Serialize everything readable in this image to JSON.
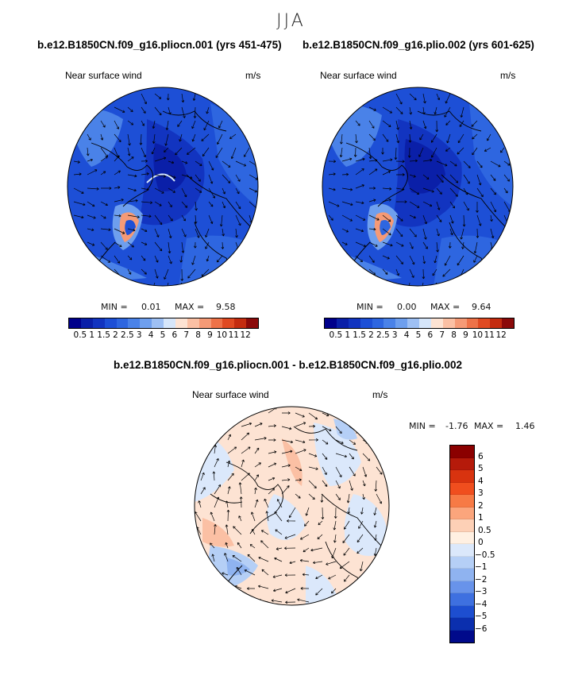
{
  "season": "JJA",
  "panels": [
    {
      "title": "b.e12.B1850CN.f09_g16.pliocn.001 (yrs 451-475)",
      "variable": "Near surface wind",
      "units": "m/s",
      "min_label": "MIN =",
      "min_value": "0.01",
      "max_label": "MAX =",
      "max_value": "9.58"
    },
    {
      "title": "b.e12.B1850CN.f09_g16.plio.002 (yrs 601-625)",
      "variable": "Near surface wind",
      "units": "m/s",
      "min_label": "MIN =",
      "min_value": "0.00",
      "max_label": "MAX =",
      "max_value": "9.64"
    },
    {
      "title": "b.e12.B1850CN.f09_g16.pliocn.001 - b.e12.B1850CN.f09_g16.plio.002",
      "variable": "Near surface wind",
      "units": "m/s",
      "min_label": "MIN =",
      "min_value": "-1.76",
      "max_label": "MAX =",
      "max_value": "1.46"
    }
  ],
  "colorbar_abs": {
    "labels": [
      "0.5",
      "1",
      "1.5",
      "2",
      "2.5",
      "3",
      "4",
      "5",
      "6",
      "7",
      "8",
      "9",
      "10",
      "11",
      "12"
    ],
    "colors": [
      "#00008b",
      "#0a1fa8",
      "#1234c0",
      "#1d4fd6",
      "#2e66e0",
      "#4a82e8",
      "#6e9fee",
      "#9ec0f4",
      "#d6e6fa",
      "#fde3d3",
      "#fbc0a4",
      "#f59a76",
      "#ee7248",
      "#e04a22",
      "#c42c10",
      "#8b0a0a"
    ]
  },
  "colorbar_diff": {
    "labels": [
      "6",
      "5",
      "4",
      "3",
      "2",
      "1",
      "0.5",
      "0",
      "−0.5",
      "−1",
      "−2",
      "−3",
      "−4",
      "−5",
      "−6"
    ],
    "colors": [
      "#8b0000",
      "#b51a0a",
      "#d8330f",
      "#f04e1e",
      "#f77a45",
      "#fba57c",
      "#fdd0b6",
      "#fff0e2",
      "#dbe8fb",
      "#b5cff6",
      "#8fb3f0",
      "#6893ea",
      "#3e70e0",
      "#1d4ed0",
      "#0b2fae",
      "#000a8b"
    ]
  }
}
